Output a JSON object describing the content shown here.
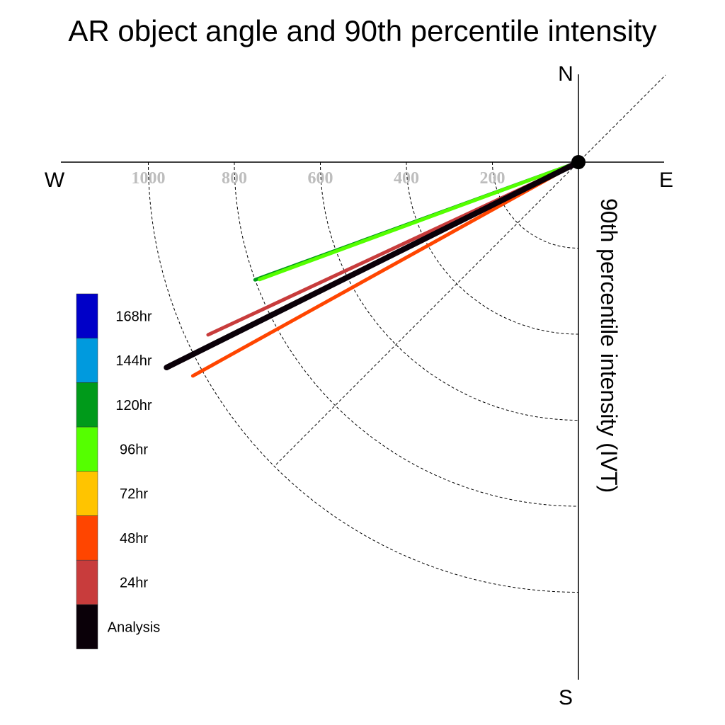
{
  "chart_data": {
    "type": "polar-vector",
    "title": "AR object angle and 90th percentile intensity",
    "radial_label": "90th percentile intensity (IVT)",
    "compass": {
      "north": "N",
      "south": "S",
      "east": "E",
      "west": "W"
    },
    "radial_ticks": [
      200,
      400,
      600,
      800,
      1000
    ],
    "radial_tick_labels": [
      "200",
      "400",
      "600",
      "800",
      "1000"
    ],
    "angle_unit": "degrees below west (counter-clockwise from W)",
    "series": [
      {
        "name": "24hr",
        "angle": 25.0,
        "intensity": 950,
        "color": "#c83c3c"
      },
      {
        "name": "48hr",
        "angle": 29.0,
        "intensity": 1025,
        "color": "#ff4500"
      },
      {
        "name": "120hr",
        "angle": 20.0,
        "intensity": 800,
        "color": "#009a1a"
      },
      {
        "name": "96hr",
        "angle": 20.2,
        "intensity": 790,
        "color": "#55ff00"
      },
      {
        "name": "Analysis",
        "angle": 26.5,
        "intensity": 1070,
        "color": "#0a0008"
      }
    ],
    "legend": {
      "placement": "left",
      "items": [
        {
          "label": "168hr",
          "color": "#0000c8"
        },
        {
          "label": "144hr",
          "color": "#009ade"
        },
        {
          "label": "120hr",
          "color": "#009a1a"
        },
        {
          "label": "96hr",
          "color": "#55ff00"
        },
        {
          "label": "72hr",
          "color": "#ffc400"
        },
        {
          "label": "48hr",
          "color": "#ff4500"
        },
        {
          "label": "24hr",
          "color": "#c83c3c"
        },
        {
          "label": "Analysis",
          "color": "#0a0008"
        }
      ]
    }
  }
}
